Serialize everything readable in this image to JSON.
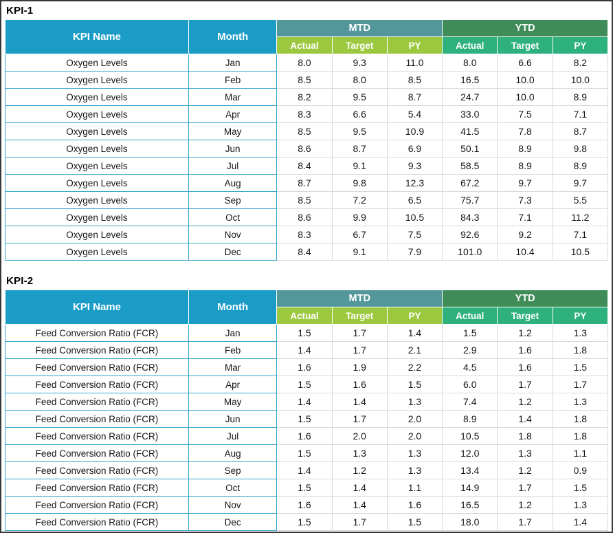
{
  "colors": {
    "header_blue": "#1B9CC7",
    "mtd_band": "#54979B",
    "mtd_sub": "#9CC83F",
    "ytd_band": "#3F8C58",
    "ytd_sub": "#2FB17E",
    "name_border": "#35A4CC",
    "data_border": "#D8D8D8"
  },
  "tables": [
    {
      "title": "KPI-1",
      "kpi_name_header": "KPI Name",
      "month_header": "Month",
      "mtd_label": "MTD",
      "ytd_label": "YTD",
      "sub_headers": [
        "Actual",
        "Target",
        "PY"
      ],
      "rows": [
        {
          "name": "Oxygen Levels",
          "month": "Jan",
          "mtd": [
            "8.0",
            "9.3",
            "11.0"
          ],
          "ytd": [
            "8.0",
            "6.6",
            "8.2"
          ]
        },
        {
          "name": "Oxygen Levels",
          "month": "Feb",
          "mtd": [
            "8.5",
            "8.0",
            "8.5"
          ],
          "ytd": [
            "16.5",
            "10.0",
            "10.0"
          ]
        },
        {
          "name": "Oxygen Levels",
          "month": "Mar",
          "mtd": [
            "8.2",
            "9.5",
            "8.7"
          ],
          "ytd": [
            "24.7",
            "10.0",
            "8.9"
          ]
        },
        {
          "name": "Oxygen Levels",
          "month": "Apr",
          "mtd": [
            "8.3",
            "6.6",
            "5.4"
          ],
          "ytd": [
            "33.0",
            "7.5",
            "7.1"
          ]
        },
        {
          "name": "Oxygen Levels",
          "month": "May",
          "mtd": [
            "8.5",
            "9.5",
            "10.9"
          ],
          "ytd": [
            "41.5",
            "7.8",
            "8.7"
          ]
        },
        {
          "name": "Oxygen Levels",
          "month": "Jun",
          "mtd": [
            "8.6",
            "8.7",
            "6.9"
          ],
          "ytd": [
            "50.1",
            "8.9",
            "9.8"
          ]
        },
        {
          "name": "Oxygen Levels",
          "month": "Jul",
          "mtd": [
            "8.4",
            "9.1",
            "9.3"
          ],
          "ytd": [
            "58.5",
            "8.9",
            "8.9"
          ]
        },
        {
          "name": "Oxygen Levels",
          "month": "Aug",
          "mtd": [
            "8.7",
            "9.8",
            "12.3"
          ],
          "ytd": [
            "67.2",
            "9.7",
            "9.7"
          ]
        },
        {
          "name": "Oxygen Levels",
          "month": "Sep",
          "mtd": [
            "8.5",
            "7.2",
            "6.5"
          ],
          "ytd": [
            "75.7",
            "7.3",
            "5.5"
          ]
        },
        {
          "name": "Oxygen Levels",
          "month": "Oct",
          "mtd": [
            "8.6",
            "9.9",
            "10.5"
          ],
          "ytd": [
            "84.3",
            "7.1",
            "11.2"
          ]
        },
        {
          "name": "Oxygen Levels",
          "month": "Nov",
          "mtd": [
            "8.3",
            "6.7",
            "7.5"
          ],
          "ytd": [
            "92.6",
            "9.2",
            "7.1"
          ]
        },
        {
          "name": "Oxygen Levels",
          "month": "Dec",
          "mtd": [
            "8.4",
            "9.1",
            "7.9"
          ],
          "ytd": [
            "101.0",
            "10.4",
            "10.5"
          ]
        }
      ]
    },
    {
      "title": "KPI-2",
      "kpi_name_header": "KPI Name",
      "month_header": "Month",
      "mtd_label": "MTD",
      "ytd_label": "YTD",
      "sub_headers": [
        "Actual",
        "Target",
        "PY"
      ],
      "rows": [
        {
          "name": "Feed Conversion Ratio (FCR)",
          "month": "Jan",
          "mtd": [
            "1.5",
            "1.7",
            "1.4"
          ],
          "ytd": [
            "1.5",
            "1.2",
            "1.3"
          ]
        },
        {
          "name": "Feed Conversion Ratio (FCR)",
          "month": "Feb",
          "mtd": [
            "1.4",
            "1.7",
            "2.1"
          ],
          "ytd": [
            "2.9",
            "1.6",
            "1.8"
          ]
        },
        {
          "name": "Feed Conversion Ratio (FCR)",
          "month": "Mar",
          "mtd": [
            "1.6",
            "1.9",
            "2.2"
          ],
          "ytd": [
            "4.5",
            "1.6",
            "1.5"
          ]
        },
        {
          "name": "Feed Conversion Ratio (FCR)",
          "month": "Apr",
          "mtd": [
            "1.5",
            "1.6",
            "1.5"
          ],
          "ytd": [
            "6.0",
            "1.7",
            "1.7"
          ]
        },
        {
          "name": "Feed Conversion Ratio (FCR)",
          "month": "May",
          "mtd": [
            "1.4",
            "1.4",
            "1.3"
          ],
          "ytd": [
            "7.4",
            "1.2",
            "1.3"
          ]
        },
        {
          "name": "Feed Conversion Ratio (FCR)",
          "month": "Jun",
          "mtd": [
            "1.5",
            "1.7",
            "2.0"
          ],
          "ytd": [
            "8.9",
            "1.4",
            "1.8"
          ]
        },
        {
          "name": "Feed Conversion Ratio (FCR)",
          "month": "Jul",
          "mtd": [
            "1.6",
            "2.0",
            "2.0"
          ],
          "ytd": [
            "10.5",
            "1.8",
            "1.8"
          ]
        },
        {
          "name": "Feed Conversion Ratio (FCR)",
          "month": "Aug",
          "mtd": [
            "1.5",
            "1.3",
            "1.3"
          ],
          "ytd": [
            "12.0",
            "1.3",
            "1.1"
          ]
        },
        {
          "name": "Feed Conversion Ratio (FCR)",
          "month": "Sep",
          "mtd": [
            "1.4",
            "1.2",
            "1.3"
          ],
          "ytd": [
            "13.4",
            "1.2",
            "0.9"
          ]
        },
        {
          "name": "Feed Conversion Ratio (FCR)",
          "month": "Oct",
          "mtd": [
            "1.5",
            "1.4",
            "1.1"
          ],
          "ytd": [
            "14.9",
            "1.7",
            "1.5"
          ]
        },
        {
          "name": "Feed Conversion Ratio (FCR)",
          "month": "Nov",
          "mtd": [
            "1.6",
            "1.4",
            "1.6"
          ],
          "ytd": [
            "16.5",
            "1.2",
            "1.3"
          ]
        },
        {
          "name": "Feed Conversion Ratio (FCR)",
          "month": "Dec",
          "mtd": [
            "1.5",
            "1.7",
            "1.5"
          ],
          "ytd": [
            "18.0",
            "1.7",
            "1.4"
          ]
        }
      ]
    }
  ]
}
